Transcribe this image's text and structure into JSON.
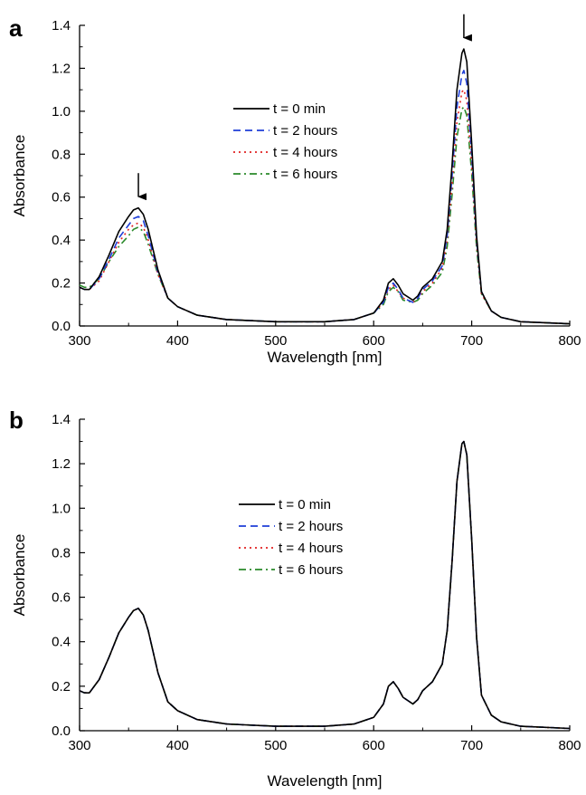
{
  "chart_data": [
    {
      "panel_label": "a",
      "type": "line",
      "xlabel": "Wavelength [nm]",
      "ylabel": "Absorbance",
      "xlim": [
        300,
        800
      ],
      "ylim": [
        0,
        1.4
      ],
      "xticks": [
        300,
        400,
        500,
        600,
        700,
        800
      ],
      "yticks": [
        0.0,
        0.2,
        0.4,
        0.6,
        0.8,
        1.0,
        1.2,
        1.4
      ],
      "ytick_labels": [
        "0.0",
        "0.2",
        "0.4",
        "0.6",
        "0.8",
        "1.0",
        "1.2",
        "1.4"
      ],
      "xtick_labels": [
        "300",
        "400",
        "500",
        "600",
        "700",
        "800"
      ],
      "grid": false,
      "legend_position": "upper-center",
      "annotations": [
        {
          "type": "arrow-down",
          "x": 360,
          "y": 0.56
        },
        {
          "type": "arrow-down",
          "x": 692,
          "y": 1.3
        }
      ],
      "x": [
        300,
        305,
        310,
        320,
        330,
        340,
        350,
        355,
        360,
        365,
        370,
        380,
        390,
        400,
        420,
        450,
        500,
        550,
        580,
        600,
        610,
        615,
        620,
        625,
        630,
        640,
        645,
        650,
        660,
        670,
        675,
        680,
        685,
        690,
        692,
        695,
        700,
        705,
        710,
        720,
        730,
        750,
        800
      ],
      "series": [
        {
          "name": "t = 0 min",
          "color": "#000000",
          "dash": "solid",
          "values": [
            0.18,
            0.17,
            0.17,
            0.23,
            0.33,
            0.44,
            0.51,
            0.54,
            0.55,
            0.52,
            0.45,
            0.26,
            0.13,
            0.09,
            0.05,
            0.03,
            0.02,
            0.02,
            0.03,
            0.06,
            0.12,
            0.2,
            0.22,
            0.19,
            0.15,
            0.12,
            0.14,
            0.18,
            0.22,
            0.3,
            0.45,
            0.75,
            1.1,
            1.27,
            1.29,
            1.23,
            0.85,
            0.42,
            0.16,
            0.07,
            0.04,
            0.02,
            0.01
          ]
        },
        {
          "name": "t = 2 hours",
          "color": "#1f3fd8",
          "dash": "8,5",
          "values": [
            0.18,
            0.17,
            0.17,
            0.22,
            0.31,
            0.41,
            0.47,
            0.5,
            0.51,
            0.49,
            0.42,
            0.25,
            0.13,
            0.09,
            0.05,
            0.03,
            0.02,
            0.02,
            0.03,
            0.06,
            0.11,
            0.18,
            0.2,
            0.17,
            0.13,
            0.11,
            0.13,
            0.17,
            0.21,
            0.28,
            0.42,
            0.7,
            1.02,
            1.17,
            1.19,
            1.13,
            0.8,
            0.4,
            0.16,
            0.07,
            0.04,
            0.02,
            0.01
          ]
        },
        {
          "name": "t = 4 hours",
          "color": "#e02020",
          "dash": "2,4",
          "values": [
            0.18,
            0.17,
            0.17,
            0.21,
            0.3,
            0.39,
            0.45,
            0.47,
            0.48,
            0.46,
            0.4,
            0.24,
            0.13,
            0.09,
            0.05,
            0.03,
            0.02,
            0.02,
            0.03,
            0.06,
            0.11,
            0.17,
            0.19,
            0.16,
            0.13,
            0.11,
            0.13,
            0.16,
            0.2,
            0.27,
            0.4,
            0.66,
            0.95,
            1.09,
            1.1,
            1.05,
            0.75,
            0.38,
            0.15,
            0.07,
            0.04,
            0.02,
            0.01
          ]
        },
        {
          "name": "t = 6 hours",
          "color": "#2a8a2a",
          "dash": "8,4,2,4",
          "values": [
            0.19,
            0.18,
            0.18,
            0.22,
            0.3,
            0.37,
            0.42,
            0.45,
            0.46,
            0.44,
            0.38,
            0.24,
            0.13,
            0.09,
            0.05,
            0.03,
            0.02,
            0.02,
            0.03,
            0.06,
            0.1,
            0.16,
            0.18,
            0.16,
            0.12,
            0.11,
            0.12,
            0.15,
            0.19,
            0.25,
            0.37,
            0.61,
            0.88,
            1.01,
            1.02,
            0.98,
            0.71,
            0.36,
            0.15,
            0.07,
            0.04,
            0.02,
            0.01
          ]
        }
      ]
    },
    {
      "panel_label": "b",
      "type": "line",
      "xlabel": "Wavelength [nm]",
      "ylabel": "Absorbance",
      "xlim": [
        300,
        800
      ],
      "ylim": [
        0,
        1.4
      ],
      "xticks": [
        300,
        400,
        500,
        600,
        700,
        800
      ],
      "yticks": [
        0.0,
        0.2,
        0.4,
        0.6,
        0.8,
        1.0,
        1.2,
        1.4
      ],
      "ytick_labels": [
        "0.0",
        "0.2",
        "0.4",
        "0.6",
        "0.8",
        "1.0",
        "1.2",
        "1.4"
      ],
      "xtick_labels": [
        "300",
        "400",
        "500",
        "600",
        "700",
        "800"
      ],
      "grid": false,
      "legend_position": "upper-center",
      "annotations": [],
      "x": [
        300,
        305,
        310,
        320,
        330,
        340,
        350,
        355,
        360,
        365,
        370,
        380,
        390,
        400,
        420,
        450,
        500,
        550,
        580,
        600,
        610,
        615,
        620,
        625,
        630,
        640,
        645,
        650,
        660,
        670,
        675,
        680,
        685,
        690,
        692,
        695,
        700,
        705,
        710,
        720,
        730,
        750,
        800
      ],
      "series": [
        {
          "name": "t = 0 min",
          "color": "#000000",
          "dash": "solid",
          "values": [
            0.18,
            0.17,
            0.17,
            0.23,
            0.33,
            0.44,
            0.51,
            0.54,
            0.55,
            0.52,
            0.45,
            0.26,
            0.13,
            0.09,
            0.05,
            0.03,
            0.02,
            0.02,
            0.03,
            0.06,
            0.12,
            0.2,
            0.22,
            0.19,
            0.15,
            0.12,
            0.14,
            0.18,
            0.22,
            0.3,
            0.45,
            0.76,
            1.12,
            1.29,
            1.3,
            1.24,
            0.86,
            0.42,
            0.16,
            0.07,
            0.04,
            0.02,
            0.01
          ]
        },
        {
          "name": "t = 2 hours",
          "color": "#1f3fd8",
          "dash": "8,5",
          "values": [
            0.18,
            0.17,
            0.17,
            0.23,
            0.33,
            0.44,
            0.51,
            0.54,
            0.55,
            0.52,
            0.45,
            0.26,
            0.13,
            0.09,
            0.05,
            0.03,
            0.02,
            0.02,
            0.03,
            0.06,
            0.12,
            0.2,
            0.22,
            0.19,
            0.15,
            0.12,
            0.14,
            0.18,
            0.22,
            0.3,
            0.45,
            0.76,
            1.12,
            1.29,
            1.3,
            1.24,
            0.86,
            0.42,
            0.16,
            0.07,
            0.04,
            0.02,
            0.01
          ]
        },
        {
          "name": "t = 4 hours",
          "color": "#e02020",
          "dash": "2,4",
          "values": [
            0.18,
            0.17,
            0.17,
            0.23,
            0.33,
            0.44,
            0.51,
            0.54,
            0.55,
            0.52,
            0.45,
            0.26,
            0.13,
            0.09,
            0.05,
            0.03,
            0.02,
            0.02,
            0.03,
            0.06,
            0.12,
            0.2,
            0.22,
            0.19,
            0.15,
            0.12,
            0.14,
            0.18,
            0.22,
            0.3,
            0.45,
            0.76,
            1.12,
            1.29,
            1.3,
            1.24,
            0.86,
            0.42,
            0.16,
            0.07,
            0.04,
            0.02,
            0.01
          ]
        },
        {
          "name": "t = 6 hours",
          "color": "#2a8a2a",
          "dash": "8,4,2,4",
          "values": [
            0.18,
            0.17,
            0.17,
            0.23,
            0.33,
            0.44,
            0.51,
            0.54,
            0.55,
            0.52,
            0.45,
            0.26,
            0.13,
            0.09,
            0.05,
            0.03,
            0.02,
            0.02,
            0.03,
            0.06,
            0.12,
            0.2,
            0.22,
            0.19,
            0.15,
            0.12,
            0.14,
            0.18,
            0.22,
            0.3,
            0.45,
            0.76,
            1.12,
            1.29,
            1.3,
            1.24,
            0.86,
            0.42,
            0.16,
            0.07,
            0.04,
            0.02,
            0.01
          ]
        }
      ]
    }
  ]
}
